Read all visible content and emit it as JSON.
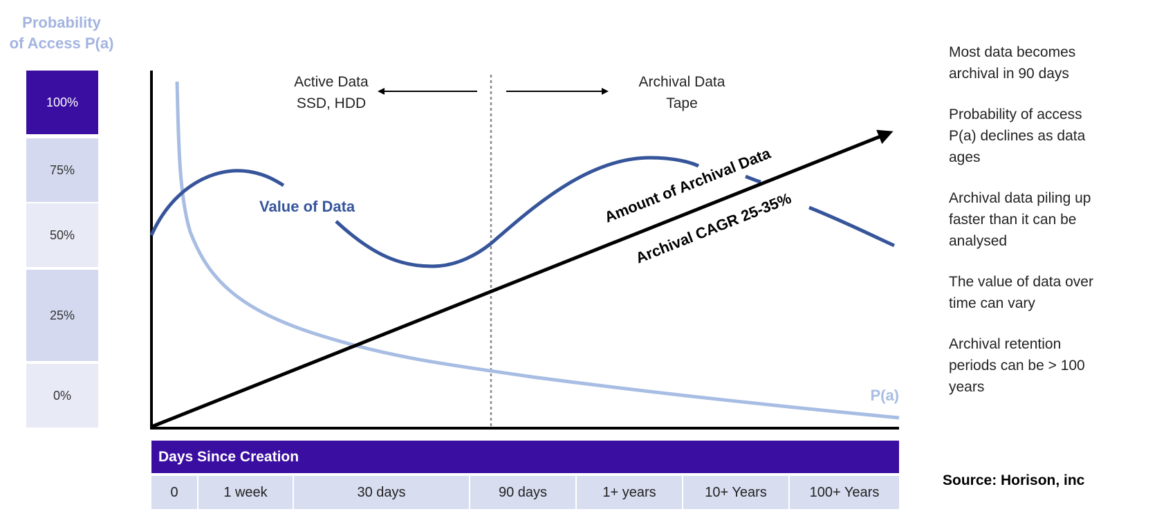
{
  "access_scale": {
    "title_line1": "Probability",
    "title_line2": "of Access P(a)",
    "levels": [
      "100%",
      "75%",
      "50%",
      "25%",
      "0%"
    ],
    "colors": [
      "#3a0ea0",
      "#d4d9ef",
      "#e8eaf6",
      "#d4d9ef",
      "#e8eaf6"
    ]
  },
  "diagram": {
    "active_label_line1": "Active Data",
    "active_label_line2": "SSD, HDD",
    "archival_label_line1": "Archival Data",
    "archival_label_line2": "Tape",
    "value_curve_label": "Value of Data",
    "archival_line_label1": "Amount of Archival Data",
    "archival_line_label2": "Archival CAGR 25-35%",
    "pa_curve_label": "P(a)",
    "value_curve_color": "#36559a",
    "pa_curve_color": "#a8bde3",
    "archival_line_color": "#000000"
  },
  "timeline": {
    "title": "Days Since Creation",
    "ticks": [
      "0",
      "1 week",
      "30 days",
      "90 days",
      "1+ years",
      "10+ Years",
      "100+ Years"
    ]
  },
  "notes": [
    "Most data becomes\narchival in 90 days",
    "Probability of access\nP(a) declines as data\nages",
    "Archival data piling up\nfaster than it can be\nanalysed",
    "The value of data over\ntime can vary",
    "Archival retention\nperiods can be > 100\nyears"
  ],
  "source": "Source: Horison, inc"
}
